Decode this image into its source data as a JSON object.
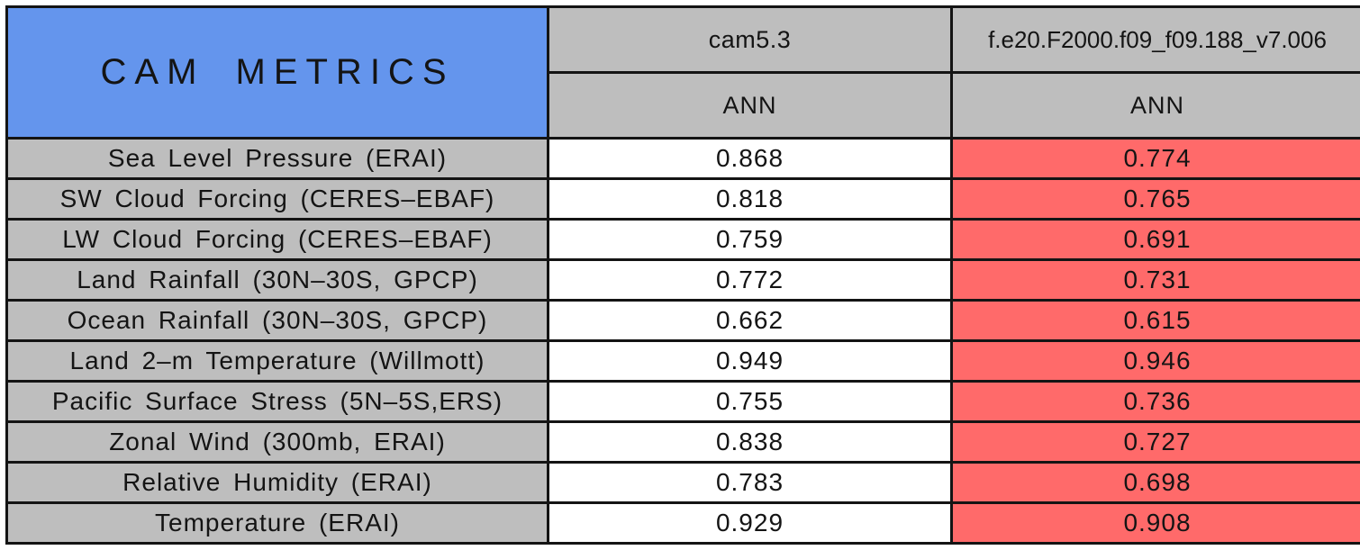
{
  "title": "CAM METRICS",
  "columns": [
    {
      "name": "cam5.3",
      "season": "ANN"
    },
    {
      "name": "f.e20.F2000.f09_f09.188_v7.006",
      "season": "ANN"
    }
  ],
  "rows": [
    {
      "label": "Sea Level Pressure (ERAI)",
      "values": [
        "0.868",
        "0.774"
      ]
    },
    {
      "label": "SW Cloud Forcing (CERES–EBAF)",
      "values": [
        "0.818",
        "0.765"
      ]
    },
    {
      "label": "LW Cloud Forcing (CERES–EBAF)",
      "values": [
        "0.759",
        "0.691"
      ]
    },
    {
      "label": "Land Rainfall (30N–30S, GPCP)",
      "values": [
        "0.772",
        "0.731"
      ]
    },
    {
      "label": "Ocean Rainfall (30N–30S, GPCP)",
      "values": [
        "0.662",
        "0.615"
      ]
    },
    {
      "label": "Land 2–m Temperature (Willmott)",
      "values": [
        "0.949",
        "0.946"
      ]
    },
    {
      "label": "Pacific Surface Stress (5N–5S,ERS)",
      "values": [
        "0.755",
        "0.736"
      ]
    },
    {
      "label": "Zonal Wind (300mb, ERAI)",
      "values": [
        "0.838",
        "0.727"
      ]
    },
    {
      "label": "Relative Humidity (ERAI)",
      "values": [
        "0.783",
        "0.698"
      ]
    },
    {
      "label": "Temperature (ERAI)",
      "values": [
        "0.929",
        "0.908"
      ]
    }
  ],
  "colors": {
    "header_blue": "#6495ED",
    "cell_gray": "#BEBEBE",
    "flag_red": "#FF6A6A",
    "border_black": "#141414"
  },
  "chart_data": {
    "type": "table",
    "title": "CAM METRICS",
    "categories": [
      "Sea Level Pressure (ERAI)",
      "SW Cloud Forcing (CERES-EBAF)",
      "LW Cloud Forcing (CERES-EBAF)",
      "Land Rainfall (30N-30S, GPCP)",
      "Ocean Rainfall (30N-30S, GPCP)",
      "Land 2-m Temperature (Willmott)",
      "Pacific Surface Stress (5N-5S,ERS)",
      "Zonal Wind (300mb, ERAI)",
      "Relative Humidity (ERAI)",
      "Temperature (ERAI)"
    ],
    "series": [
      {
        "name": "cam5.3 (ANN)",
        "values": [
          0.868,
          0.818,
          0.759,
          0.772,
          0.662,
          0.949,
          0.755,
          0.838,
          0.783,
          0.929
        ]
      },
      {
        "name": "f.e20.F2000.f09_f09.188_v7.006 (ANN)",
        "values": [
          0.774,
          0.765,
          0.691,
          0.731,
          0.615,
          0.946,
          0.736,
          0.727,
          0.698,
          0.908
        ]
      }
    ],
    "layout_hints": {
      "highlight": "second series cells shaded red (worse than control)",
      "header_fill": "cornflower blue title cell, gray header cells"
    }
  }
}
